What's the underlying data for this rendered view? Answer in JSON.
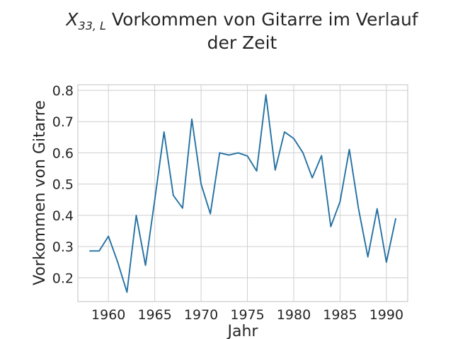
{
  "chart_data": {
    "type": "line",
    "title": {
      "math_var": "X",
      "math_sub": "33, L",
      "line1_rest": " Vorkommen von Gitarre im Verlauf",
      "line2": "der Zeit"
    },
    "xlabel": "Jahr",
    "ylabel": "Vorkommen von Gitarre",
    "xlim": [
      1956.7,
      1992.3
    ],
    "ylim": [
      0.124,
      0.818
    ],
    "xticks": [
      1960,
      1965,
      1970,
      1975,
      1980,
      1985,
      1990
    ],
    "yticks": [
      0.2,
      0.3,
      0.4,
      0.5,
      0.6,
      0.7,
      0.8
    ],
    "grid": true,
    "series": [
      {
        "color": "#2471a3",
        "x": [
          1958,
          1959,
          1960,
          1961,
          1962,
          1963,
          1964,
          1965,
          1966,
          1967,
          1968,
          1969,
          1970,
          1971,
          1972,
          1973,
          1974,
          1975,
          1976,
          1977,
          1978,
          1979,
          1980,
          1981,
          1982,
          1983,
          1984,
          1985,
          1986,
          1987,
          1988,
          1989,
          1990,
          1991
        ],
        "y": [
          0.286,
          0.286,
          0.333,
          0.25,
          0.154,
          0.4,
          0.24,
          0.45,
          0.667,
          0.464,
          0.423,
          0.708,
          0.5,
          0.405,
          0.6,
          0.593,
          0.6,
          0.59,
          0.542,
          0.786,
          0.545,
          0.667,
          0.646,
          0.6,
          0.52,
          0.591,
          0.364,
          0.444,
          0.611,
          0.42,
          0.267,
          0.421,
          0.25,
          0.389
        ]
      }
    ]
  }
}
